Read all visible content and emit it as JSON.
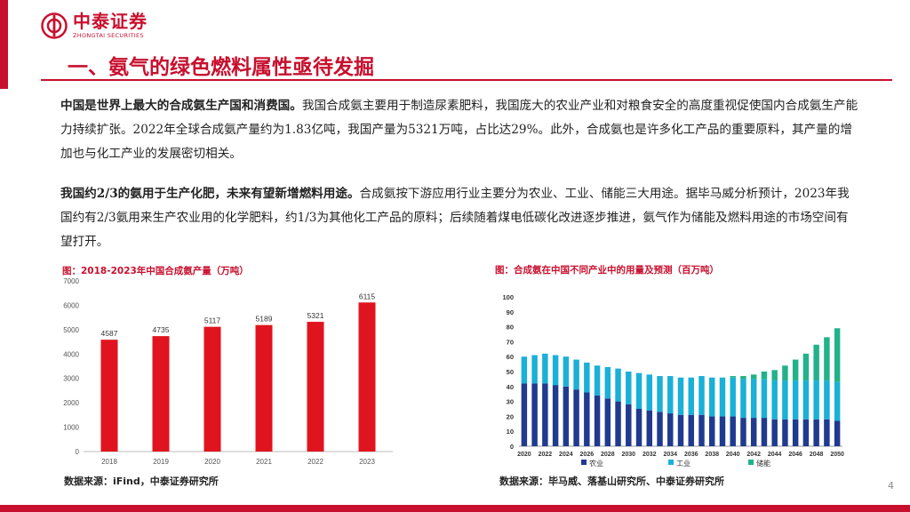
{
  "header": {
    "logo_cn": "中泰证券",
    "logo_en": "ZHONGTAI SECURITIES",
    "title": "一、氨气的绿色燃料属性亟待发掘"
  },
  "paragraphs": [
    {
      "bold": "中国是世界上最大的合成氨生产国和消费国。",
      "text": "我国合成氨主要用于制造尿素肥料，我国庞大的农业产业和对粮食安全的高度重视促使国内合成氨生产能力持续扩张。2022年全球合成氨产量约为1.83亿吨，我国产量为5321万吨，占比达29%。此外，合成氨也是许多化工产品的重要原料，其产量的增加也与化工产业的发展密切相关。"
    },
    {
      "bold": "我国约2/3的氨用于生产化肥，未来有望新增燃料用途。",
      "text": "合成氨按下游应用行业主要分为农业、工业、储能三大用途。据毕马威分析预计，2023年我国约有2/3氨用来生产农业用的化学肥料，约1/3为其他化工产品的原料；后续随着煤电低碳化改进逐步推进，氨气作为储能及燃料用途的市场空间有望打开。"
    }
  ],
  "chart_left": {
    "caption": "图：2018-2023年中国合成氨产量（万吨）",
    "source": "数据来源：iFind，中泰证券研究所"
  },
  "chart_right": {
    "caption": "图：合成氨在中国不同产业中的用量及预测（百万吨）",
    "source": "数据来源：毕马威、落基山研究所、中泰证券研究所"
  },
  "page_number": "4",
  "colors": {
    "brand_red": "#c8102e",
    "bar_red": "#e0141e",
    "agri": "#1f3a8f",
    "industry": "#1ab0d8",
    "storage": "#22b28a"
  },
  "chart_data": [
    {
      "type": "bar",
      "categories": [
        "2018",
        "2019",
        "2020",
        "2021",
        "2022",
        "2023"
      ],
      "values": [
        4587,
        4735,
        5117,
        5189,
        5321,
        6115
      ],
      "title": "图：2018-2023年中国合成氨产量（万吨）",
      "ylim": [
        0,
        7000
      ],
      "yticks": [
        0,
        1000,
        2000,
        3000,
        4000,
        5000,
        6000,
        7000
      ],
      "data_labels": true,
      "grid": false
    },
    {
      "type": "bar",
      "stacked": true,
      "categories": [
        "2020",
        "2021",
        "2022",
        "2023",
        "2024",
        "2025",
        "2026",
        "2027",
        "2028",
        "2029",
        "2030",
        "2031",
        "2032",
        "2033",
        "2034",
        "2035",
        "2036",
        "2037",
        "2038",
        "2039",
        "2040",
        "2041",
        "2042",
        "2043",
        "2044",
        "2045",
        "2046",
        "2047",
        "2048",
        "2049",
        "2050"
      ],
      "xticks": [
        "2020",
        "2022",
        "2024",
        "2026",
        "2028",
        "2030",
        "2032",
        "2034",
        "2036",
        "2038",
        "2040",
        "2042",
        "2044",
        "2046",
        "2048",
        "2050"
      ],
      "series": [
        {
          "name": "农业",
          "values": [
            42,
            42,
            42,
            41,
            40,
            38,
            36,
            34,
            32,
            30,
            28,
            25,
            24,
            23,
            22,
            21,
            21,
            21,
            20,
            20,
            20,
            19,
            19,
            19,
            18,
            18,
            18,
            18,
            18,
            18,
            17
          ]
        },
        {
          "name": "工业",
          "values": [
            18,
            19,
            20,
            20,
            20,
            20,
            20,
            20,
            21,
            22,
            22,
            24,
            24,
            24,
            25,
            25,
            25,
            26,
            26,
            26,
            26,
            26,
            26,
            26,
            26,
            26,
            26,
            26,
            26,
            26,
            26
          ]
        },
        {
          "name": "储能",
          "values": [
            0,
            0,
            0,
            0,
            0,
            0,
            0,
            0,
            0,
            0,
            0,
            0,
            0,
            0,
            0,
            0,
            0,
            0,
            0,
            0,
            1,
            2,
            3,
            5,
            7,
            10,
            14,
            18,
            24,
            29,
            36
          ]
        }
      ],
      "title": "图：合成氨在中国不同产业中的用量及预测（百万吨）",
      "ylim": [
        0,
        100
      ],
      "yticks": [
        0,
        10,
        20,
        30,
        40,
        50,
        60,
        70,
        80,
        90,
        100
      ],
      "legend": "bottom",
      "grid": false
    }
  ]
}
